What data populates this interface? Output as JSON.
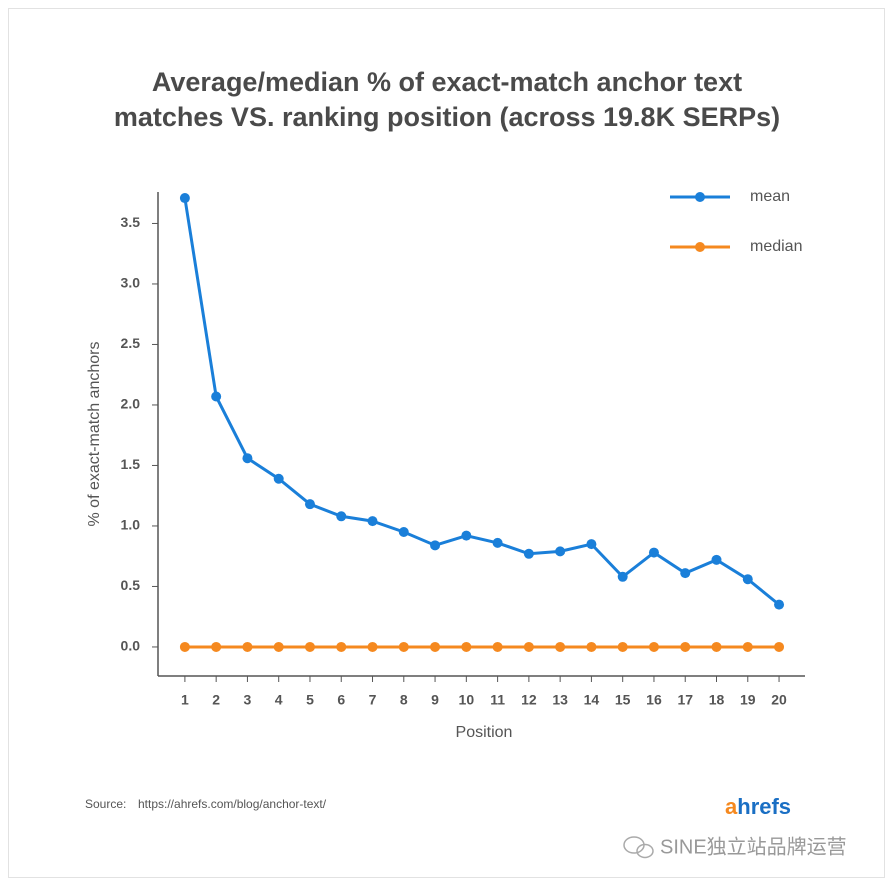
{
  "chart_data": {
    "type": "line",
    "title": [
      "Average/median % of exact-match anchor text",
      "matches VS. ranking position (across 19.8K SERPs)"
    ],
    "x_label": "Position",
    "y_label": "% of exact-match anchors",
    "x": [
      1,
      2,
      3,
      4,
      5,
      6,
      7,
      8,
      9,
      10,
      11,
      12,
      13,
      14,
      15,
      16,
      17,
      18,
      19,
      20
    ],
    "xlim": [
      0.14,
      20.83
    ],
    "xticks": [
      1,
      2,
      3,
      4,
      5,
      6,
      7,
      8,
      9,
      10,
      11,
      12,
      13,
      14,
      15,
      16,
      17,
      18,
      19,
      20
    ],
    "ylim": [
      -0.24,
      3.76
    ],
    "yticks": [
      {
        "value": 0,
        "label": "0.0"
      },
      0.5,
      {
        "value": 1,
        "label": "1.0"
      },
      1.5,
      {
        "value": 2,
        "label": "2.0"
      },
      2.5,
      {
        "value": 3,
        "label": "3.0"
      },
      3.5
    ],
    "series": [
      {
        "name": "mean",
        "color": "#1a7fd9",
        "values": [
          3.71,
          2.07,
          1.56,
          1.39,
          1.18,
          1.08,
          1.04,
          0.95,
          0.84,
          0.92,
          0.86,
          0.77,
          0.79,
          0.85,
          0.58,
          0.78,
          0.61,
          0.72,
          0.56,
          0.35
        ]
      },
      {
        "name": "median",
        "color": "#f5891f",
        "values": [
          0,
          0,
          0,
          0,
          0,
          0,
          0,
          0,
          0,
          0,
          0,
          0,
          0,
          0,
          0,
          0,
          0,
          0,
          0,
          0
        ]
      }
    ],
    "legend": "top-right",
    "grid": false,
    "source_label": "Source:",
    "source_url": "https://ahrefs.com/blog/anchor-text/",
    "logo": {
      "accent": "a",
      "rest": "hrefs"
    },
    "watermark": "SINE独立站品牌运营"
  }
}
